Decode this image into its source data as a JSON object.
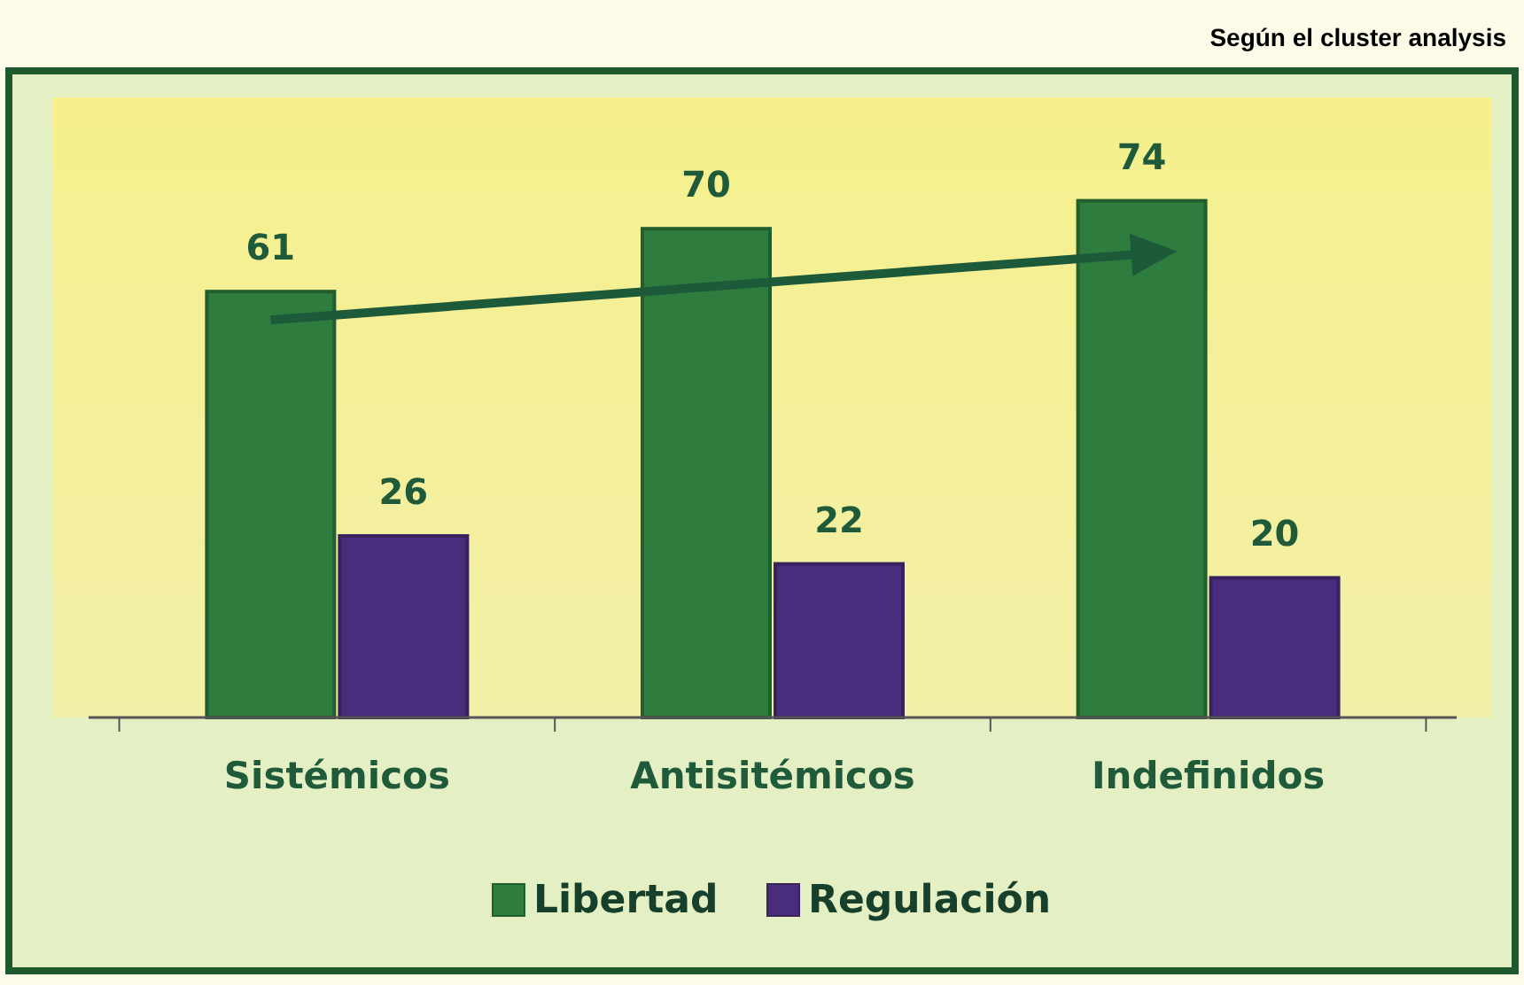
{
  "chart_data": {
    "type": "bar",
    "title": "Según el cluster analysis",
    "categories": [
      "Sistémicos",
      "Antisitémicos",
      "Indefinidos"
    ],
    "series": [
      {
        "name": "Libertad",
        "color": "#2e7d3f",
        "values": [
          61,
          70,
          74
        ]
      },
      {
        "name": "Regulación",
        "color": "#4a2c7c",
        "values": [
          26,
          22,
          20
        ]
      }
    ],
    "data_labels": true,
    "legend": "bottom",
    "grid": false
  }
}
